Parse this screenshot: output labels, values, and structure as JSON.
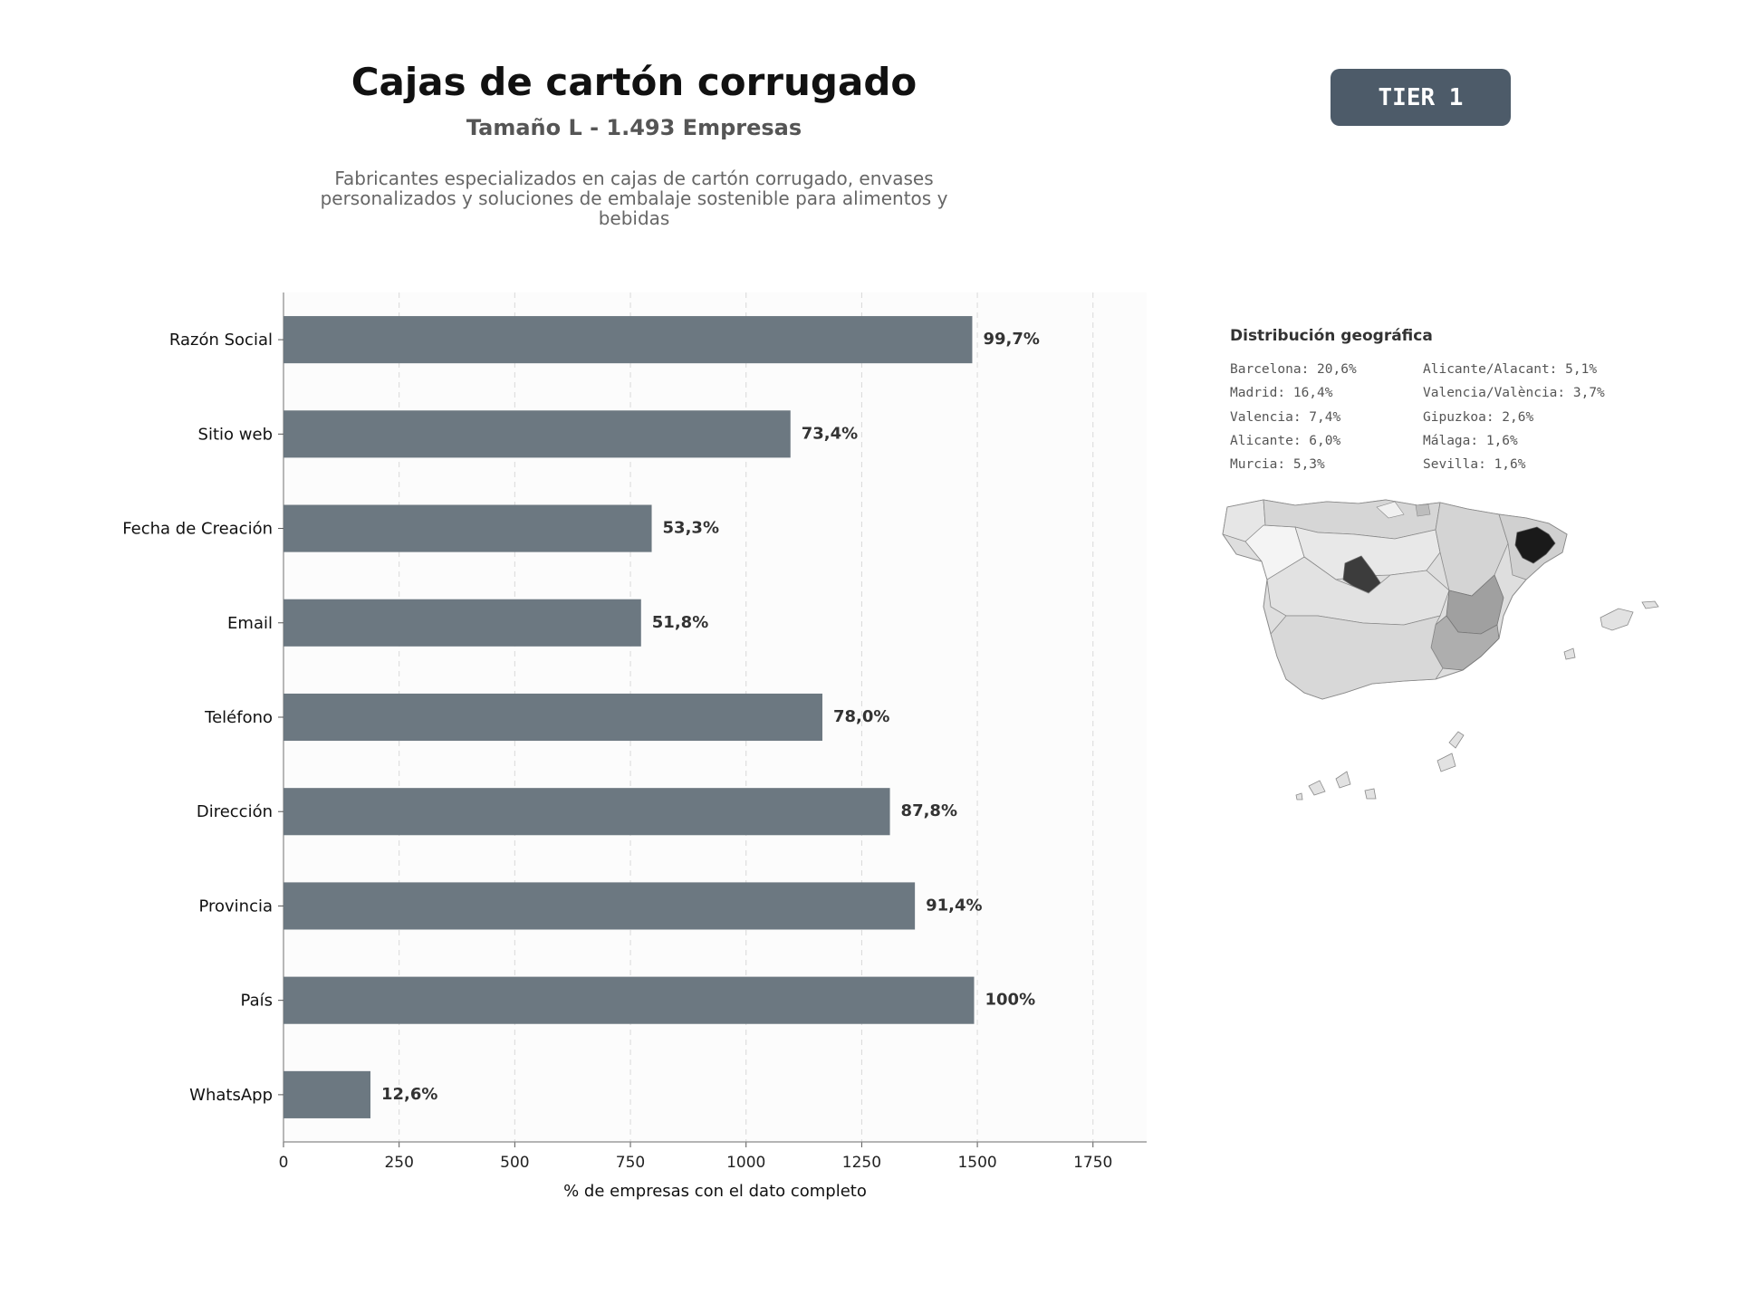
{
  "header": {
    "title": "Cajas de cartón corrugado",
    "subtitle": "Tamaño L - 1.493 Empresas",
    "description": "Fabricantes especializados en cajas de cartón corrugado, envases personalizados y soluciones de embalaje sostenible para alimentos y bebidas",
    "tier_label": "TIER 1"
  },
  "colors": {
    "bar": "#6c7881",
    "badge": "#4d5b69",
    "plot_bg": "#fcfcfc",
    "map_highlight_1": "#1a1a1a",
    "map_highlight_2": "#3c3c3c",
    "map_mid": "#a0a0a0",
    "map_light": "#d9d9d9"
  },
  "chart_data": {
    "type": "bar",
    "orientation": "horizontal",
    "categories": [
      "Razón Social",
      "Sitio web",
      "Fecha de Creación",
      "Email",
      "Teléfono",
      "Dirección",
      "Provincia",
      "País",
      "WhatsApp"
    ],
    "values": [
      1489,
      1096,
      796,
      773,
      1165,
      1311,
      1365,
      1493,
      188
    ],
    "data_labels": [
      "99,7%",
      "73,4%",
      "53,3%",
      "51,8%",
      "78,0%",
      "87,8%",
      "91,4%",
      "100%",
      "12,6%"
    ],
    "xlabel": "% de empresas con el dato completo",
    "ylabel": "",
    "xlim": [
      0,
      1866
    ],
    "xticks": [
      0,
      250,
      500,
      750,
      1000,
      1250,
      1500,
      1750
    ],
    "grid": "x-dashed",
    "legend": "none"
  },
  "geo": {
    "title": "Distribución geográfica",
    "left_column": [
      "Barcelona: 20,6%",
      "Madrid: 16,4%",
      "Valencia: 7,4%",
      "Alicante: 6,0%",
      "Murcia: 5,3%"
    ],
    "right_column": [
      "Alicante/Alacant: 5,1%",
      "Valencia/València: 3,7%",
      "Gipuzkoa: 2,6%",
      "Málaga: 1,6%",
      "Sevilla: 1,6%"
    ]
  }
}
